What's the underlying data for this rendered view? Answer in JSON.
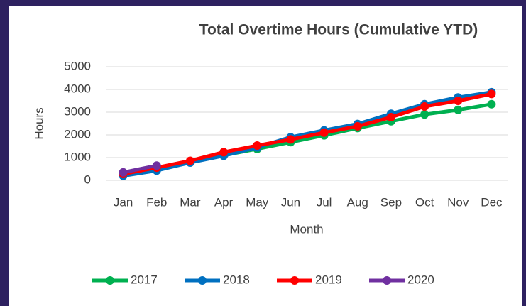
{
  "chart_data": {
    "type": "line",
    "title": "Total Overtime Hours (Cumulative YTD)",
    "x_label": "Month",
    "y_label": "Hours",
    "categories": [
      "Jan",
      "Feb",
      "Mar",
      "Apr",
      "May",
      "Jun",
      "Jul",
      "Aug",
      "Sep",
      "Oct",
      "Nov",
      "Dec"
    ],
    "series": [
      {
        "name": "2017",
        "color": "#00b050",
        "values": [
          250,
          480,
          800,
          1100,
          1380,
          1680,
          1980,
          2300,
          2600,
          2900,
          3100,
          3350
        ]
      },
      {
        "name": "2018",
        "color": "#0070c0",
        "values": [
          200,
          430,
          780,
          1080,
          1450,
          1900,
          2200,
          2480,
          2930,
          3350,
          3650,
          3880
        ]
      },
      {
        "name": "2019",
        "color": "#ff0000",
        "values": [
          280,
          560,
          860,
          1240,
          1530,
          1800,
          2100,
          2380,
          2780,
          3250,
          3500,
          3800
        ]
      },
      {
        "name": "2020",
        "color": "#7030a0",
        "values": [
          350,
          650,
          null,
          null,
          null,
          null,
          null,
          null,
          null,
          null,
          null,
          null
        ]
      }
    ],
    "ylim": [
      0,
      5000
    ],
    "yticks": [
      0,
      1000,
      2000,
      3000,
      4000,
      5000
    ],
    "grid": true,
    "legend": "bottom"
  }
}
